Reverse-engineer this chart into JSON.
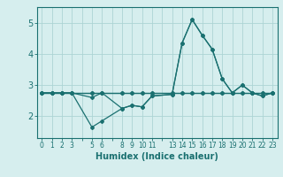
{
  "xlabel": "Humidex (Indice chaleur)",
  "background_color": "#d6eeee",
  "grid_color": "#add4d4",
  "line_color": "#1a7070",
  "spine_color": "#1a7070",
  "xlim": [
    -0.5,
    23.5
  ],
  "ylim": [
    1.3,
    5.5
  ],
  "yticks": [
    2,
    3,
    4,
    5
  ],
  "all_xticks": [
    0,
    1,
    2,
    3,
    4,
    5,
    6,
    7,
    8,
    9,
    10,
    11,
    12,
    13,
    14,
    15,
    16,
    17,
    18,
    19,
    20,
    21,
    22,
    23
  ],
  "labeled_xticks": [
    0,
    1,
    2,
    3,
    5,
    6,
    8,
    9,
    10,
    11,
    13,
    14,
    15,
    16,
    17,
    18,
    19,
    20,
    21,
    22,
    23
  ],
  "series": [
    {
      "x": [
        0,
        1,
        2,
        3,
        5,
        6,
        8,
        9,
        10,
        11,
        13,
        14,
        15,
        16,
        17,
        18,
        19,
        20,
        21,
        22,
        23
      ],
      "y": [
        2.75,
        2.75,
        2.75,
        2.75,
        2.6,
        2.75,
        2.25,
        2.35,
        2.3,
        2.65,
        2.7,
        4.35,
        5.1,
        4.6,
        4.15,
        3.2,
        2.75,
        3.0,
        2.75,
        2.65,
        2.75
      ]
    },
    {
      "x": [
        0,
        1,
        2,
        3,
        5,
        6,
        8,
        9,
        10,
        11,
        13,
        14,
        15,
        16,
        17,
        18,
        19,
        20,
        21,
        22,
        23
      ],
      "y": [
        2.75,
        2.75,
        2.75,
        2.75,
        1.65,
        1.85,
        2.25,
        2.35,
        2.3,
        2.65,
        2.7,
        4.35,
        5.1,
        4.6,
        4.15,
        3.2,
        2.75,
        3.0,
        2.75,
        2.65,
        2.75
      ]
    },
    {
      "x": [
        0,
        1,
        2,
        3,
        5,
        6,
        8,
        9,
        10,
        11,
        13,
        14,
        15,
        16,
        17,
        18,
        19,
        20,
        21,
        22,
        23
      ],
      "y": [
        2.75,
        2.75,
        2.75,
        2.75,
        2.75,
        2.75,
        2.75,
        2.75,
        2.75,
        2.75,
        2.75,
        2.75,
        2.75,
        2.75,
        2.75,
        2.75,
        2.75,
        2.75,
        2.75,
        2.75,
        2.75
      ]
    },
    {
      "x": [
        0,
        1,
        2,
        3,
        5,
        6,
        8,
        9,
        10,
        11,
        13,
        14,
        15,
        16,
        17,
        18,
        19,
        20,
        21,
        22,
        23
      ],
      "y": [
        2.75,
        2.75,
        2.75,
        2.75,
        2.75,
        2.75,
        2.75,
        2.75,
        2.75,
        2.75,
        2.75,
        2.75,
        2.75,
        2.75,
        2.75,
        2.75,
        2.75,
        2.75,
        2.75,
        2.75,
        2.75
      ]
    }
  ],
  "marker": "D",
  "marker_size": 2.0,
  "linewidth": 0.9,
  "tick_fontsize": 5.5,
  "ytick_fontsize": 7.0,
  "xlabel_fontsize": 7.0
}
